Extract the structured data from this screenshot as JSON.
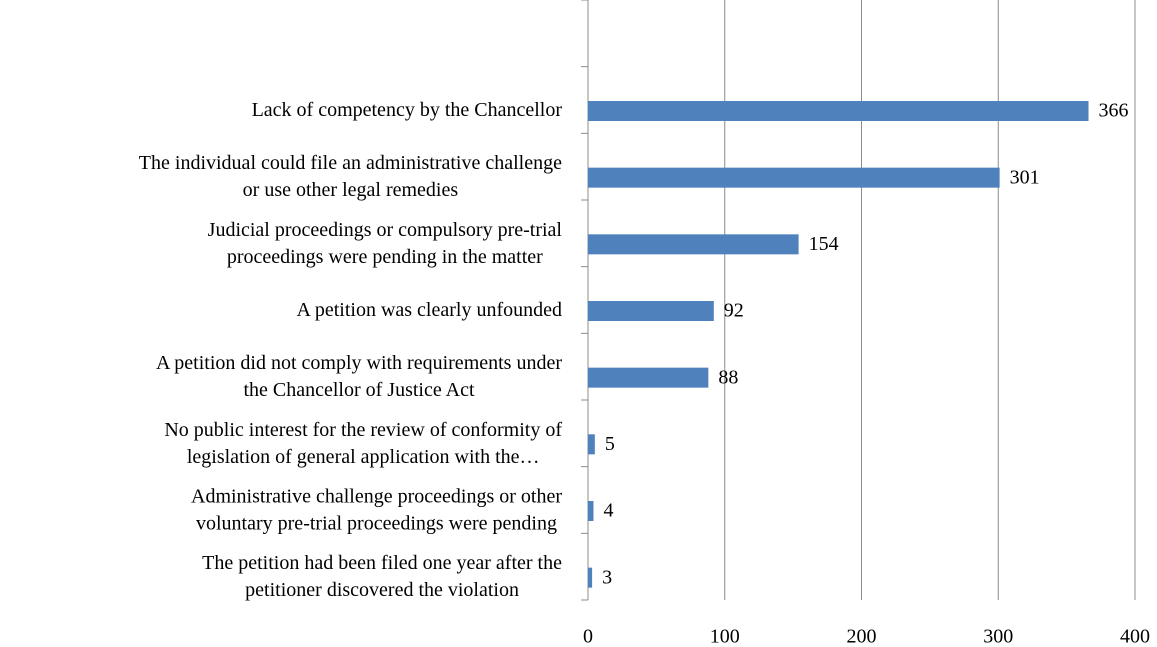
{
  "chart_data": {
    "type": "bar",
    "orientation": "horizontal",
    "categories": [
      null,
      "Lack of competency by the Chancellor",
      "The individual could file an administrative challenge\nor use other legal remedies",
      "Judicial proceedings or compulsory pre-trial\nproceedings were pending in the matter",
      "A petition was clearly unfounded",
      "A petition did not comply with requirements under\nthe Chancellor of Justice Act",
      "No public interest for the review of conformity of\nlegislation of general application with the…",
      "Administrative challenge proceedings or other\nvoluntary pre-trial proceedings were pending",
      "The petition had been filed one year after the\npetitioner discovered the violation"
    ],
    "values": [
      null,
      366,
      301,
      154,
      92,
      88,
      5,
      4,
      3
    ],
    "color": "#4f81bd",
    "xlim": [
      0,
      400
    ],
    "xticks": [
      0,
      100,
      200,
      300,
      400
    ],
    "grid": true
  }
}
